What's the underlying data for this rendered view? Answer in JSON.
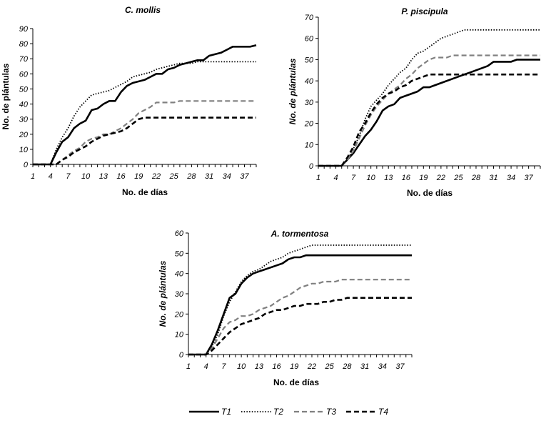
{
  "chart_data": [
    {
      "type": "line",
      "title": "C. mollis",
      "xlabel": "No. de días",
      "ylabel": "No. de plántulas",
      "ylabel_italic": false,
      "ylim": [
        0,
        90
      ],
      "yticks": [
        0,
        10,
        20,
        30,
        40,
        50,
        60,
        70,
        80,
        90
      ],
      "xlim": [
        1,
        39
      ],
      "xticks": [
        1,
        4,
        7,
        10,
        13,
        16,
        19,
        22,
        25,
        28,
        31,
        34,
        37
      ],
      "series": [
        {
          "name": "T1",
          "x": [
            1,
            2,
            3,
            4,
            5,
            6,
            7,
            8,
            9,
            10,
            11,
            12,
            13,
            14,
            15,
            16,
            17,
            18,
            19,
            20,
            21,
            22,
            23,
            24,
            25,
            26,
            27,
            28,
            29,
            30,
            31,
            32,
            33,
            34,
            35,
            36,
            37,
            38,
            39
          ],
          "values": [
            0,
            0,
            0,
            0,
            8,
            15,
            18,
            24,
            27,
            29,
            36,
            37,
            40,
            42,
            42,
            48,
            52,
            54,
            55,
            56,
            58,
            60,
            60,
            63,
            64,
            66,
            67,
            68,
            69,
            69,
            72,
            73,
            74,
            76,
            78,
            78,
            78,
            78,
            79
          ]
        },
        {
          "name": "T2",
          "x": [
            1,
            2,
            3,
            4,
            5,
            6,
            7,
            8,
            9,
            10,
            11,
            12,
            13,
            14,
            15,
            16,
            17,
            18,
            19,
            20,
            21,
            22,
            23,
            24,
            25,
            26,
            27,
            28,
            29,
            30,
            31,
            32,
            33,
            34,
            35,
            36,
            37,
            38,
            39
          ],
          "values": [
            0,
            0,
            0,
            0,
            10,
            18,
            24,
            32,
            38,
            42,
            46,
            47,
            48,
            49,
            51,
            53,
            55,
            58,
            59,
            60,
            61,
            63,
            64,
            65,
            66,
            67,
            67,
            67,
            68,
            68,
            68,
            68,
            68,
            68,
            68,
            68,
            68,
            68,
            68
          ]
        },
        {
          "name": "T3",
          "x": [
            1,
            2,
            3,
            4,
            5,
            6,
            7,
            8,
            9,
            10,
            11,
            12,
            13,
            14,
            15,
            16,
            17,
            18,
            19,
            20,
            21,
            22,
            23,
            24,
            25,
            26,
            27,
            28,
            29,
            30,
            31,
            32,
            33,
            34,
            35,
            36,
            37,
            38,
            39
          ],
          "values": [
            0,
            0,
            0,
            0,
            0,
            3,
            6,
            9,
            11,
            15,
            17,
            18,
            20,
            20,
            22,
            24,
            27,
            30,
            34,
            36,
            38,
            41,
            41,
            41,
            41,
            42,
            42,
            42,
            42,
            42,
            42,
            42,
            42,
            42,
            42,
            42,
            42,
            42,
            42
          ]
        },
        {
          "name": "T4",
          "x": [
            1,
            2,
            3,
            4,
            5,
            6,
            7,
            8,
            9,
            10,
            11,
            12,
            13,
            14,
            15,
            16,
            17,
            18,
            19,
            20,
            21,
            22,
            23,
            24,
            25,
            26,
            27,
            28,
            29,
            30,
            31,
            32,
            33,
            34,
            35,
            36,
            37,
            38,
            39
          ],
          "values": [
            0,
            0,
            0,
            0,
            0,
            3,
            5,
            8,
            10,
            12,
            15,
            17,
            19,
            20,
            21,
            22,
            24,
            27,
            30,
            31,
            31,
            31,
            31,
            31,
            31,
            31,
            31,
            31,
            31,
            31,
            31,
            31,
            31,
            31,
            31,
            31,
            31,
            31,
            31
          ]
        }
      ]
    },
    {
      "type": "line",
      "title": "P. piscipula",
      "xlabel": "No. de días",
      "ylabel": "No. de plántulas",
      "ylabel_italic": true,
      "ylim": [
        0,
        70
      ],
      "yticks": [
        0,
        10,
        20,
        30,
        40,
        50,
        60,
        70
      ],
      "xlim": [
        1,
        39
      ],
      "xticks": [
        1,
        4,
        7,
        10,
        13,
        16,
        19,
        22,
        25,
        28,
        31,
        34,
        37
      ],
      "series": [
        {
          "name": "T1",
          "x": [
            1,
            2,
            3,
            4,
            5,
            6,
            7,
            8,
            9,
            10,
            11,
            12,
            13,
            14,
            15,
            16,
            17,
            18,
            19,
            20,
            21,
            22,
            23,
            24,
            25,
            26,
            27,
            28,
            29,
            30,
            31,
            32,
            33,
            34,
            35,
            36,
            37,
            38,
            39
          ],
          "values": [
            0,
            0,
            0,
            0,
            0,
            3,
            6,
            10,
            14,
            17,
            21,
            26,
            28,
            29,
            32,
            33,
            34,
            35,
            37,
            37,
            38,
            39,
            40,
            41,
            42,
            43,
            44,
            45,
            46,
            47,
            49,
            49,
            49,
            49,
            50,
            50,
            50,
            50,
            50
          ]
        },
        {
          "name": "T2",
          "x": [
            1,
            2,
            3,
            4,
            5,
            6,
            7,
            8,
            9,
            10,
            11,
            12,
            13,
            14,
            15,
            16,
            17,
            18,
            19,
            20,
            21,
            22,
            23,
            24,
            25,
            26,
            27,
            28,
            29,
            30,
            31,
            32,
            33,
            34,
            35,
            36,
            37,
            38,
            39
          ],
          "values": [
            0,
            0,
            0,
            0,
            0,
            3,
            8,
            14,
            22,
            28,
            31,
            34,
            38,
            41,
            44,
            46,
            50,
            53,
            54,
            56,
            58,
            60,
            61,
            62,
            63,
            64,
            64,
            64,
            64,
            64,
            64,
            64,
            64,
            64,
            64,
            64,
            64,
            64,
            64
          ]
        },
        {
          "name": "T3",
          "x": [
            1,
            2,
            3,
            4,
            5,
            6,
            7,
            8,
            9,
            10,
            11,
            12,
            13,
            14,
            15,
            16,
            17,
            18,
            19,
            20,
            21,
            22,
            23,
            24,
            25,
            26,
            27,
            28,
            29,
            30,
            31,
            32,
            33,
            34,
            35,
            36,
            37,
            38,
            39
          ],
          "values": [
            0,
            0,
            0,
            0,
            0,
            3,
            7,
            13,
            19,
            24,
            28,
            31,
            34,
            36,
            38,
            41,
            43,
            46,
            48,
            50,
            51,
            51,
            51,
            52,
            52,
            52,
            52,
            52,
            52,
            52,
            52,
            52,
            52,
            52,
            52,
            52,
            52,
            52,
            52
          ]
        },
        {
          "name": "T4",
          "x": [
            1,
            2,
            3,
            4,
            5,
            6,
            7,
            8,
            9,
            10,
            11,
            12,
            13,
            14,
            15,
            16,
            17,
            18,
            19,
            20,
            21,
            22,
            23,
            24,
            25,
            26,
            27,
            28,
            29,
            30,
            31,
            32,
            33,
            34,
            35,
            36,
            37,
            38,
            39
          ],
          "values": [
            0,
            0,
            0,
            0,
            0,
            4,
            9,
            16,
            20,
            25,
            29,
            32,
            34,
            35,
            37,
            38,
            40,
            41,
            42,
            43,
            43,
            43,
            43,
            43,
            43,
            43,
            43,
            43,
            43,
            43,
            43,
            43,
            43,
            43,
            43,
            43,
            43,
            43,
            43
          ]
        }
      ]
    },
    {
      "type": "line",
      "title": "A. tormentosa",
      "xlabel": "No. de días",
      "ylabel": "No. de plántulas",
      "ylabel_italic": true,
      "ylim": [
        0,
        60
      ],
      "yticks": [
        0,
        10,
        20,
        30,
        40,
        50,
        60
      ],
      "xlim": [
        1,
        39
      ],
      "xticks": [
        1,
        4,
        7,
        10,
        13,
        16,
        19,
        22,
        25,
        28,
        31,
        34,
        37
      ],
      "series": [
        {
          "name": "T1",
          "x": [
            1,
            2,
            3,
            4,
            5,
            6,
            7,
            8,
            9,
            10,
            11,
            12,
            13,
            14,
            15,
            16,
            17,
            18,
            19,
            20,
            21,
            22,
            23,
            24,
            25,
            26,
            27,
            28,
            29,
            30,
            31,
            32,
            33,
            34,
            35,
            36,
            37,
            38,
            39
          ],
          "values": [
            0,
            0,
            0,
            0,
            5,
            12,
            20,
            28,
            30,
            35,
            38,
            40,
            41,
            42,
            43,
            44,
            45,
            47,
            48,
            48,
            49,
            49,
            49,
            49,
            49,
            49,
            49,
            49,
            49,
            49,
            49,
            49,
            49,
            49,
            49,
            49,
            49,
            49,
            49
          ]
        },
        {
          "name": "T2",
          "x": [
            1,
            2,
            3,
            4,
            5,
            6,
            7,
            8,
            9,
            10,
            11,
            12,
            13,
            14,
            15,
            16,
            17,
            18,
            19,
            20,
            21,
            22,
            23,
            24,
            25,
            26,
            27,
            28,
            29,
            30,
            31,
            32,
            33,
            34,
            35,
            36,
            37,
            38,
            39
          ],
          "values": [
            0,
            0,
            0,
            0,
            4,
            10,
            19,
            26,
            31,
            36,
            39,
            41,
            42,
            44,
            46,
            47,
            48,
            50,
            51,
            52,
            53,
            54,
            54,
            54,
            54,
            54,
            54,
            54,
            54,
            54,
            54,
            54,
            54,
            54,
            54,
            54,
            54,
            54,
            54
          ]
        },
        {
          "name": "T3",
          "x": [
            1,
            2,
            3,
            4,
            5,
            6,
            7,
            8,
            9,
            10,
            11,
            12,
            13,
            14,
            15,
            16,
            17,
            18,
            19,
            20,
            21,
            22,
            23,
            24,
            25,
            26,
            27,
            28,
            29,
            30,
            31,
            32,
            33,
            34,
            35,
            36,
            37,
            38,
            39
          ],
          "values": [
            0,
            0,
            0,
            0,
            3,
            8,
            13,
            16,
            17,
            19,
            19,
            20,
            22,
            23,
            24,
            26,
            28,
            29,
            31,
            33,
            34,
            35,
            35,
            36,
            36,
            36,
            37,
            37,
            37,
            37,
            37,
            37,
            37,
            37,
            37,
            37,
            37,
            37,
            37
          ]
        },
        {
          "name": "T4",
          "x": [
            1,
            2,
            3,
            4,
            5,
            6,
            7,
            8,
            9,
            10,
            11,
            12,
            13,
            14,
            15,
            16,
            17,
            18,
            19,
            20,
            21,
            22,
            23,
            24,
            25,
            26,
            27,
            28,
            29,
            30,
            31,
            32,
            33,
            34,
            35,
            36,
            37,
            38,
            39
          ],
          "values": [
            0,
            0,
            0,
            0,
            2,
            5,
            8,
            11,
            13,
            15,
            16,
            17,
            18,
            20,
            21,
            22,
            22,
            23,
            24,
            24,
            25,
            25,
            25,
            26,
            26,
            27,
            27,
            28,
            28,
            28,
            28,
            28,
            28,
            28,
            28,
            28,
            28,
            28,
            28
          ]
        }
      ]
    }
  ],
  "legend": {
    "position": "bottom",
    "items": [
      {
        "name": "T1",
        "style": "solid",
        "color": "#000000"
      },
      {
        "name": "T2",
        "style": "dotted",
        "color": "#000000"
      },
      {
        "name": "T3",
        "style": "dashed",
        "color": "#808080"
      },
      {
        "name": "T4",
        "style": "dashed",
        "color": "#000000"
      }
    ]
  }
}
